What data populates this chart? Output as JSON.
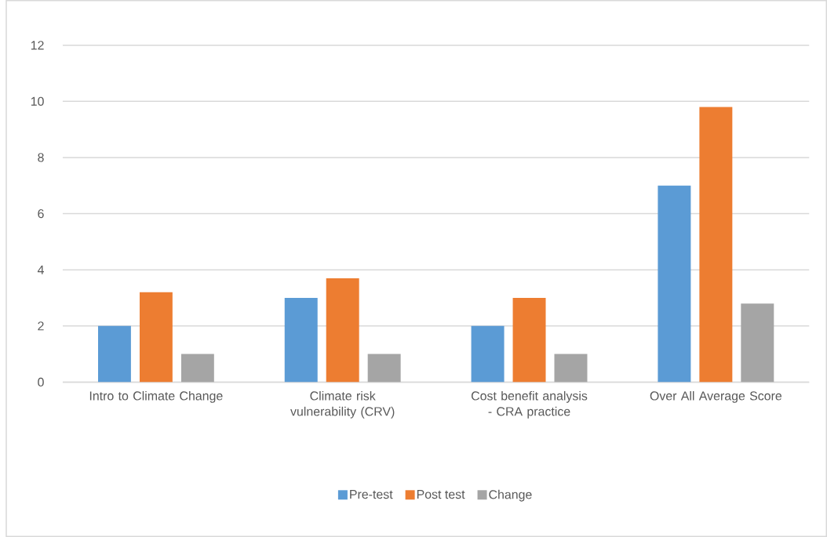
{
  "chart_data": {
    "type": "bar",
    "categories": [
      "Intro to Climate Change",
      "Climate risk vulnerability (CRV)",
      "Cost benefit analysis - CRA practice",
      "Over All Average Score"
    ],
    "series": [
      {
        "name": "Pre-test",
        "color": "#5b9bd5",
        "values": [
          2,
          3,
          2,
          7
        ]
      },
      {
        "name": "Post test",
        "color": "#ed7d31",
        "values": [
          3.2,
          3.7,
          3,
          9.8
        ]
      },
      {
        "name": "Change",
        "color": "#a5a5a5",
        "values": [
          1,
          1,
          1,
          2.8
        ]
      }
    ],
    "ylim": [
      0,
      12
    ],
    "yticks": [
      0,
      2,
      4,
      6,
      8,
      10,
      12
    ],
    "grid": "y",
    "legend": "bottom"
  }
}
